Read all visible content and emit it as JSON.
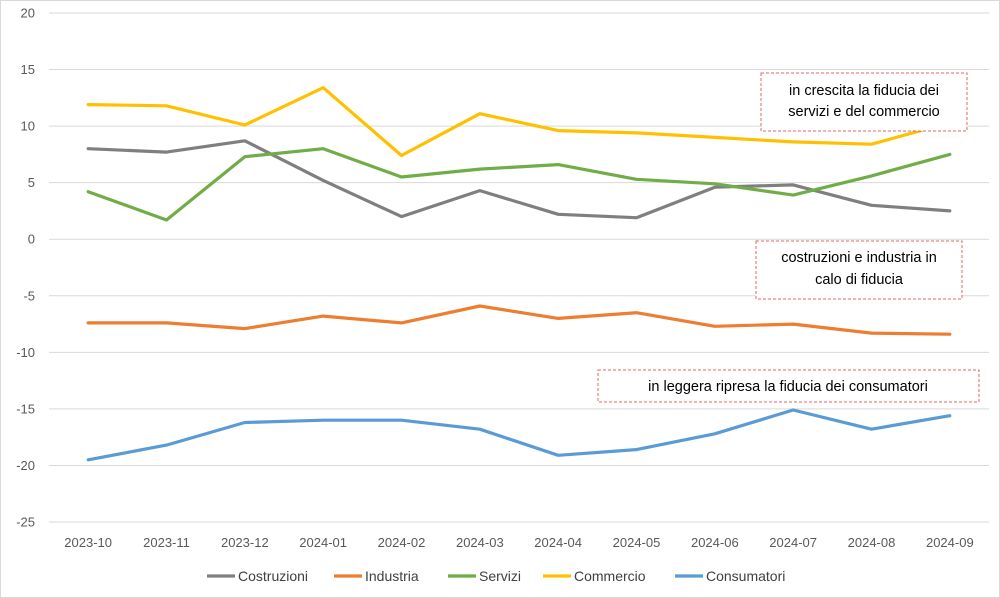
{
  "chart_data": {
    "type": "line",
    "title": "",
    "xlabel": "",
    "ylabel": "",
    "ylim": [
      -25,
      20
    ],
    "yticks": [
      -25,
      -20,
      -15,
      -10,
      -5,
      0,
      5,
      10,
      15,
      20
    ],
    "grid": true,
    "legend_position": "bottom",
    "categories": [
      "2023-10",
      "2023-11",
      "2023-12",
      "2024-01",
      "2024-02",
      "2024-03",
      "2024-04",
      "2024-05",
      "2024-06",
      "2024-07",
      "2024-08",
      "2024-09"
    ],
    "series": [
      {
        "name": "Costruzioni",
        "color": "#7f7f7f",
        "values": [
          8.0,
          7.7,
          8.7,
          5.2,
          2.0,
          4.3,
          2.2,
          1.9,
          4.6,
          4.8,
          3.0,
          2.5
        ]
      },
      {
        "name": "Industria",
        "color": "#ed7d31",
        "values": [
          -7.4,
          -7.4,
          -7.9,
          -6.8,
          -7.4,
          -5.9,
          -7.0,
          -6.5,
          -7.7,
          -7.5,
          -8.3,
          -8.4
        ]
      },
      {
        "name": "Servizi",
        "color": "#70ad47",
        "values": [
          4.2,
          1.7,
          7.3,
          8.0,
          5.5,
          6.2,
          6.6,
          5.3,
          4.9,
          3.9,
          5.6,
          7.5
        ]
      },
      {
        "name": "Commercio",
        "color": "#ffc000",
        "values": [
          11.9,
          11.8,
          10.1,
          13.4,
          7.4,
          11.1,
          9.6,
          9.4,
          9.0,
          8.6,
          8.4,
          10.3
        ]
      },
      {
        "name": "Consumatori",
        "color": "#5b9bd5",
        "values": [
          -19.5,
          -18.2,
          -16.2,
          -16.0,
          -16.0,
          -16.8,
          -19.1,
          -18.6,
          -17.2,
          -15.1,
          -16.8,
          -15.6
        ]
      }
    ],
    "annotations": [
      {
        "lines": [
          "in crescita la fiducia dei",
          "servizi e del commercio"
        ]
      },
      {
        "lines": [
          "costruzioni e industria in",
          "calo di fiducia"
        ]
      },
      {
        "lines": [
          "in leggera ripresa la fiducia dei consumatori"
        ]
      }
    ]
  }
}
